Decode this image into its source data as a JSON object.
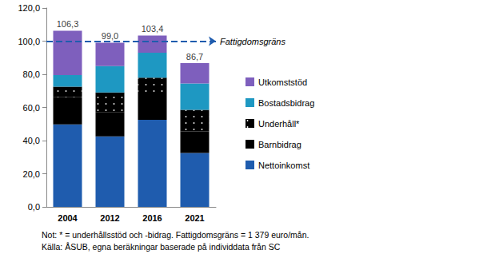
{
  "chart_data": {
    "type": "bar",
    "stacked": true,
    "categories": [
      "2004",
      "2012",
      "2016",
      "2021"
    ],
    "series": [
      {
        "name": "Nettoinkomst",
        "color": "#1f5cae",
        "values": [
          49.7,
          42.5,
          52.5,
          32.5
        ]
      },
      {
        "name": "Barnbidrag",
        "color": "#000000",
        "values": [
          16.5,
          14.5,
          14.0,
          13.0
        ]
      },
      {
        "name": "Underhåll*",
        "color": "#000000",
        "marker": "dotted",
        "values": [
          6.3,
          12.0,
          11.5,
          13.0
        ]
      },
      {
        "name": "Bostadsbidrag",
        "color": "#1e98c2",
        "values": [
          7.0,
          16.0,
          15.0,
          16.0
        ]
      },
      {
        "name": "Utkomststöd",
        "color": "#7e5fbd",
        "values": [
          26.8,
          14.0,
          10.4,
          12.2
        ]
      }
    ],
    "totals": [
      106.3,
      99.0,
      103.4,
      86.7
    ],
    "total_labels": [
      "106,3",
      "99,0",
      "103,4",
      "86,7"
    ],
    "annotations": [
      {
        "y": 100,
        "text": "Fattigdomsgräns",
        "color": "#1f5cae"
      }
    ],
    "ylim": [
      0,
      120
    ],
    "yticks": [
      {
        "value": 0,
        "label": "0,0"
      },
      {
        "value": 20,
        "label": "20,0"
      },
      {
        "value": 40,
        "label": "40,0"
      },
      {
        "value": 60,
        "label": "60,0"
      },
      {
        "value": 80,
        "label": "80,0"
      },
      {
        "value": 100,
        "label": "100,0"
      },
      {
        "value": 120,
        "label": "120,0"
      }
    ],
    "grid": false,
    "legend": "right",
    "notes": [
      "Not: * = underhållsstöd och -bidrag. Fattigdomsgräns = 1 379 euro/mån.",
      "Källa: ÅSUB, egna beräkningar baserade på individdata från SC"
    ]
  }
}
